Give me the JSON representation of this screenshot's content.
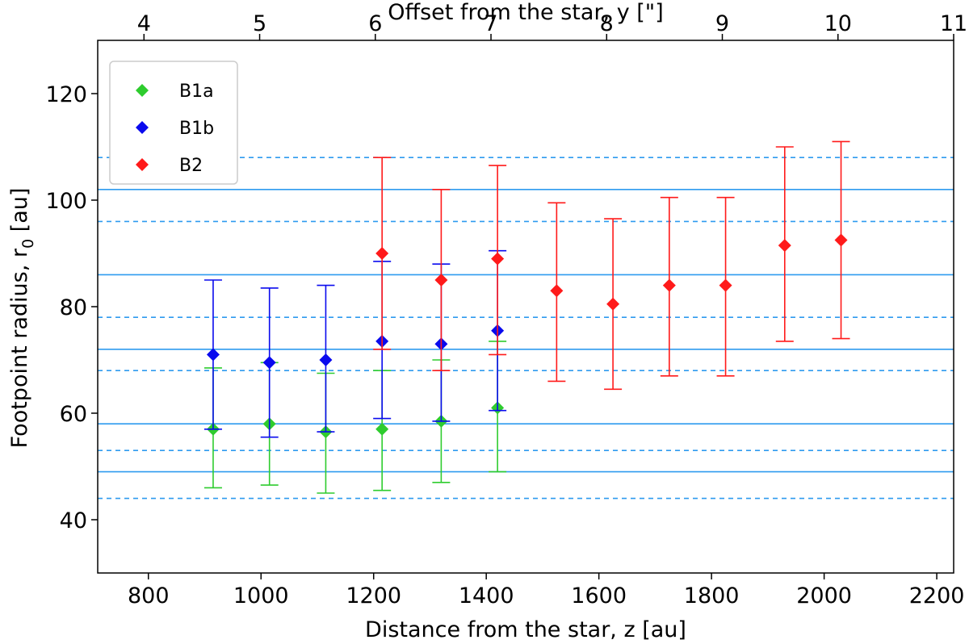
{
  "chart_data": {
    "type": "scatter",
    "xlabel": "Distance from the star, z [au]",
    "ylabel": "Footpoint radius, r",
    "ylabel_subscript": "0",
    "ylabel_unit": " [au]",
    "top_xlabel": "Offset from the star, y [\"]",
    "xlim": [
      710,
      2230
    ],
    "ylim": [
      30,
      130
    ],
    "x_ticks": [
      800,
      1000,
      1200,
      1400,
      1600,
      1800,
      2000,
      2200
    ],
    "y_ticks": [
      40,
      60,
      80,
      100,
      120
    ],
    "top_x_ticks": [
      4,
      5,
      6,
      7,
      8,
      9,
      10,
      11
    ],
    "top_xlim": [
      3.6,
      11
    ],
    "legend_position": "top-left",
    "reference_lines": {
      "color": "#2e9bef",
      "solid": [
        102,
        86,
        72,
        58,
        49
      ],
      "dashed": [
        108,
        96,
        78,
        68,
        53,
        44
      ]
    },
    "series": [
      {
        "name": "B1a",
        "color": "#2ecc2e",
        "x": [
          915,
          1015,
          1115,
          1215,
          1320,
          1420
        ],
        "y": [
          57,
          58,
          56.5,
          57,
          58.5,
          61
        ],
        "err_low": [
          46,
          46.5,
          45,
          45.5,
          47,
          49
        ],
        "err_high": [
          68.5,
          69.5,
          67.5,
          68,
          70,
          73.5
        ]
      },
      {
        "name": "B1b",
        "color": "#0a0aee",
        "x": [
          915,
          1015,
          1115,
          1215,
          1320,
          1420
        ],
        "y": [
          71,
          69.5,
          70,
          73.5,
          73,
          75.5
        ],
        "err_low": [
          57,
          55.5,
          56.5,
          59,
          58.5,
          60.5
        ],
        "err_high": [
          85,
          83.5,
          84,
          88.5,
          88,
          90.5
        ]
      },
      {
        "name": "B2",
        "color": "#ff1a1a",
        "x": [
          1215,
          1320,
          1420,
          1525,
          1625,
          1725,
          1825,
          1930,
          2030
        ],
        "y": [
          90,
          85,
          89,
          83,
          80.5,
          84,
          84,
          91.5,
          92.5
        ],
        "err_low": [
          72,
          68,
          71,
          66,
          64.5,
          67,
          67,
          73.5,
          74
        ],
        "err_high": [
          108,
          102,
          106.5,
          99.5,
          96.5,
          100.5,
          100.5,
          110,
          111
        ]
      }
    ]
  }
}
